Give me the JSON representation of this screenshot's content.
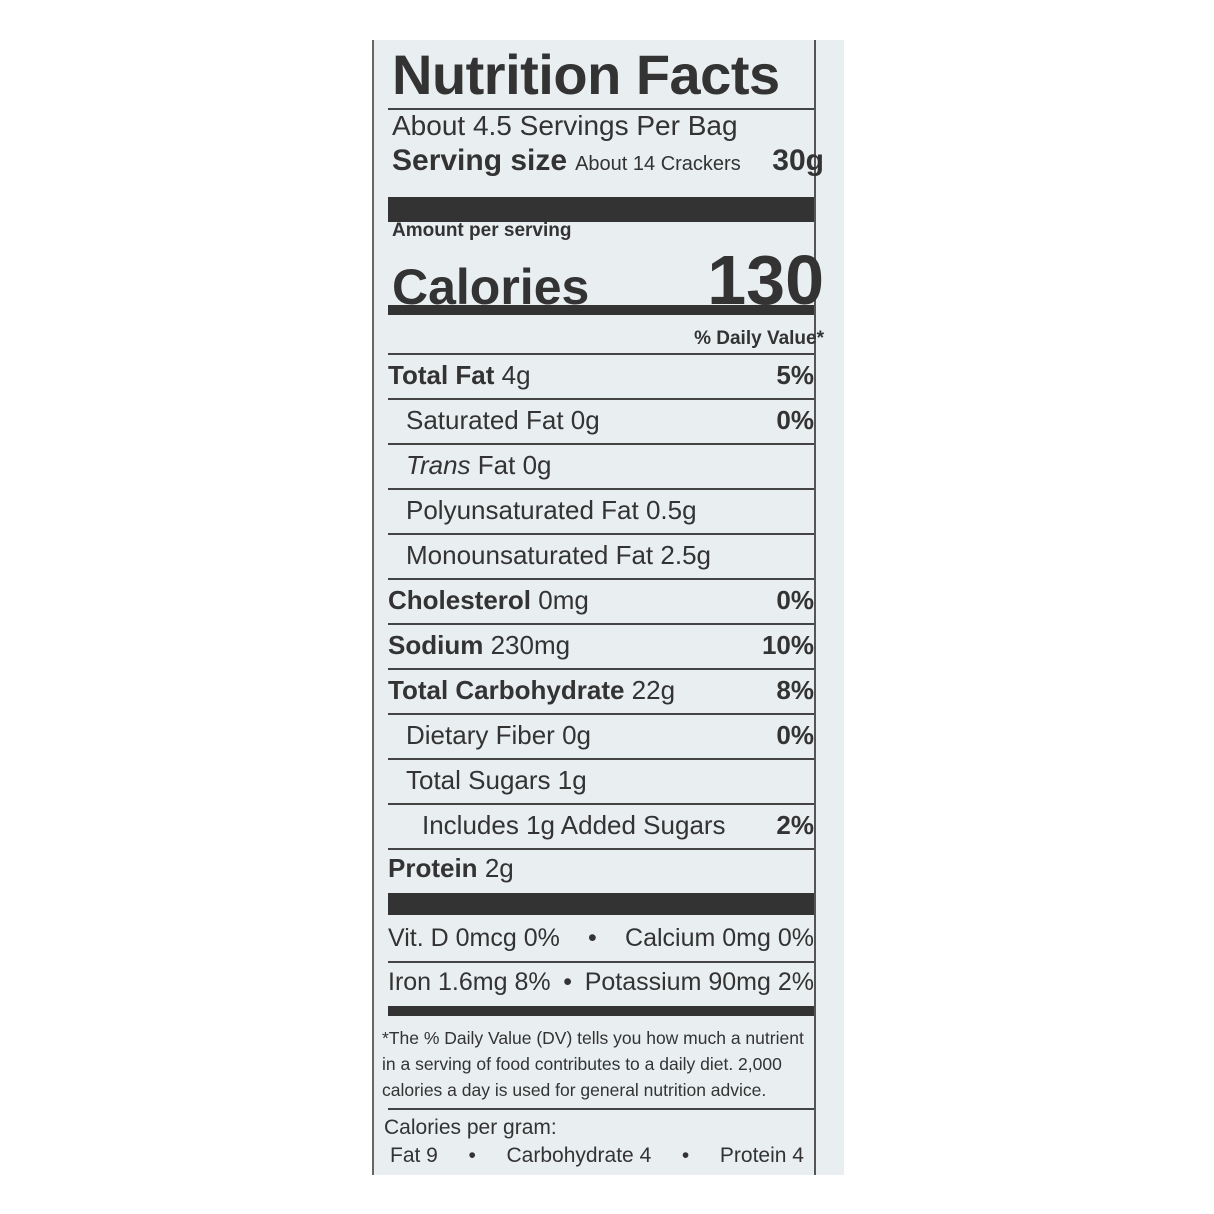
{
  "title": "Nutrition Facts",
  "servings": "About 4.5 Servings Per Bag",
  "serving_size": {
    "label": "Serving size",
    "desc": "About 14 Crackers",
    "amount": "30g"
  },
  "amount_per_serving": "Amount per serving",
  "calories": {
    "label": "Calories",
    "value": "130"
  },
  "dv_header": "% Daily Value*",
  "nutrients": [
    {
      "name": "Total Fat",
      "amount": "4g",
      "dv": "5%"
    },
    {
      "name": "Saturated Fat",
      "amount": "0g",
      "dv": "0%"
    },
    {
      "name": "Trans",
      "name_rest": "Fat",
      "amount": "0g",
      "dv": ""
    },
    {
      "name": "Polyunsaturated Fat",
      "amount": "0.5g",
      "dv": ""
    },
    {
      "name": "Monounsaturated Fat",
      "amount": "2.5g",
      "dv": ""
    },
    {
      "name": "Cholesterol",
      "amount": "0mg",
      "dv": "0%"
    },
    {
      "name": "Sodium",
      "amount": "230mg",
      "dv": "10%"
    },
    {
      "name": "Total Carbohydrate",
      "amount": "22g",
      "dv": "8%"
    },
    {
      "name": "Dietary Fiber",
      "amount": "0g",
      "dv": "0%"
    },
    {
      "name": "Total Sugars",
      "amount": "1g",
      "dv": ""
    },
    {
      "name": "Includes 1g Added Sugars",
      "amount": "",
      "dv": "2%"
    },
    {
      "name": "Protein",
      "amount": "2g",
      "dv": ""
    }
  ],
  "vitamins": [
    {
      "left": "Vit. D 0mcg 0%",
      "right": "Calcium 0mg 0%"
    },
    {
      "left": "Iron 1.6mg 8%",
      "right": "Potassium 90mg 2%"
    }
  ],
  "bullet": "•",
  "footnote": "*The % Daily Value (DV) tells you how much a nutrient in a serving of food contributes to a daily diet. 2,000 calories a day is used for general nutrition advice.",
  "calories_per_gram": {
    "label": "Calories per gram:",
    "fat": "Fat 9",
    "carb": "Carbohydrate 4",
    "protein": "Protein 4"
  }
}
